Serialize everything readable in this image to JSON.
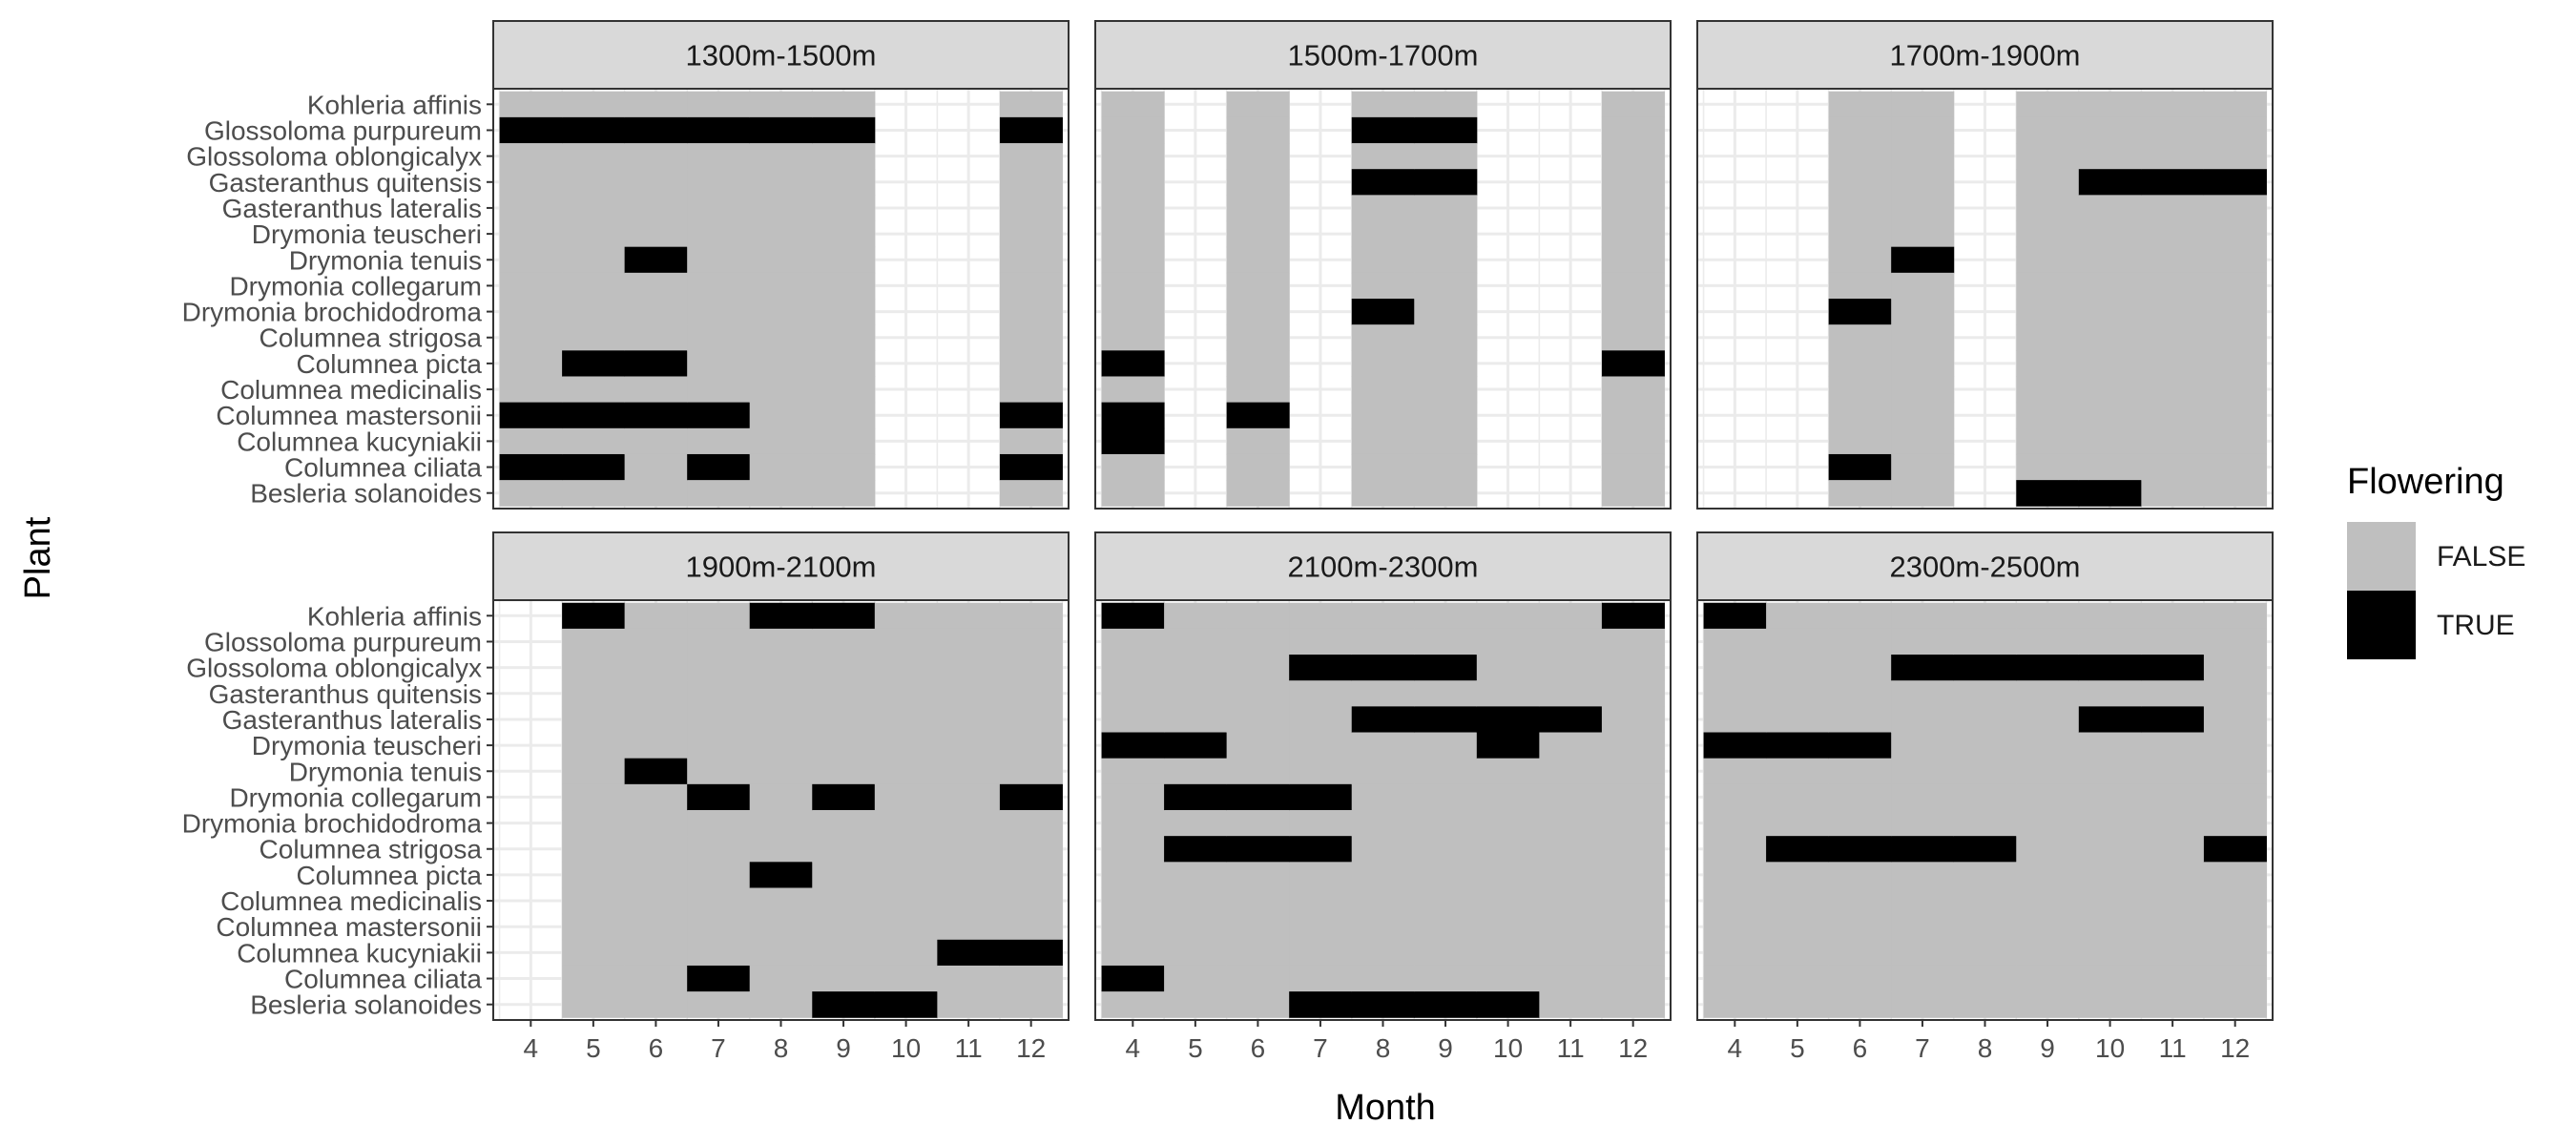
{
  "chart_data": {
    "type": "heatmap",
    "xlabel": "Month",
    "ylabel": "Plant",
    "x_ticks": [
      4,
      5,
      6,
      7,
      8,
      9,
      10,
      11,
      12
    ],
    "plants": [
      "Kohleria affinis",
      "Glossoloma purpureum",
      "Glossoloma oblongicalyx",
      "Gasteranthus quitensis",
      "Gasteranthus lateralis",
      "Drymonia teuscheri",
      "Drymonia tenuis",
      "Drymonia collegarum",
      "Drymonia brochidodroma",
      "Columnea strigosa",
      "Columnea picta",
      "Columnea medicinalis",
      "Columnea mastersonii",
      "Columnea kucyniakii",
      "Columnea ciliata",
      "Besleria solanoides"
    ],
    "legend": {
      "title": "Flowering",
      "entries": [
        {
          "label": "FALSE",
          "color": "#bfbfbf"
        },
        {
          "label": "TRUE",
          "color": "#000000"
        }
      ]
    },
    "panels": [
      {
        "label": "1300m-1500m",
        "sampled_months": [
          4,
          5,
          6,
          7,
          8,
          9,
          12
        ],
        "flowering": {
          "Glossoloma purpureum": [
            4,
            5,
            6,
            7,
            8,
            9,
            12
          ],
          "Drymonia tenuis": [
            6
          ],
          "Columnea picta": [
            5,
            6
          ],
          "Columnea mastersonii": [
            4,
            5,
            6,
            7,
            12
          ],
          "Columnea ciliata": [
            4,
            5,
            7,
            12
          ]
        }
      },
      {
        "label": "1500m-1700m",
        "sampled_months": [
          4,
          6,
          8,
          9,
          12
        ],
        "flowering": {
          "Glossoloma purpureum": [
            8,
            9
          ],
          "Gasteranthus quitensis": [
            8,
            9
          ],
          "Drymonia brochidodroma": [
            8
          ],
          "Columnea picta": [
            4,
            12
          ],
          "Columnea mastersonii": [
            4,
            6
          ],
          "Columnea kucyniakii": [
            4
          ]
        }
      },
      {
        "label": "1700m-1900m",
        "sampled_months": [
          6,
          7,
          9,
          10,
          11,
          12
        ],
        "flowering": {
          "Gasteranthus quitensis": [
            10,
            11,
            12
          ],
          "Drymonia tenuis": [
            7
          ],
          "Drymonia brochidodroma": [
            6
          ],
          "Columnea ciliata": [
            6
          ],
          "Besleria solanoides": [
            9,
            10
          ]
        }
      },
      {
        "label": "1900m-2100m",
        "sampled_months": [
          5,
          6,
          7,
          8,
          9,
          10,
          11,
          12
        ],
        "flowering": {
          "Kohleria affinis": [
            5,
            8,
            9
          ],
          "Drymonia tenuis": [
            6
          ],
          "Drymonia collegarum": [
            7,
            9,
            12
          ],
          "Columnea picta": [
            8
          ],
          "Columnea kucyniakii": [
            11,
            12
          ],
          "Columnea ciliata": [
            7
          ],
          "Besleria solanoides": [
            9,
            10
          ]
        }
      },
      {
        "label": "2100m-2300m",
        "sampled_months": [
          4,
          5,
          6,
          7,
          8,
          9,
          10,
          11,
          12
        ],
        "flowering": {
          "Kohleria affinis": [
            4,
            12
          ],
          "Glossoloma oblongicalyx": [
            7,
            8,
            9
          ],
          "Gasteranthus lateralis": [
            8,
            9,
            10,
            11
          ],
          "Drymonia teuscheri": [
            4,
            5,
            10
          ],
          "Drymonia collegarum": [
            5,
            6,
            7
          ],
          "Columnea strigosa": [
            5,
            6,
            7
          ],
          "Columnea ciliata": [
            4
          ],
          "Besleria solanoides": [
            7,
            8,
            9,
            10
          ]
        }
      },
      {
        "label": "2300m-2500m",
        "sampled_months": [
          4,
          5,
          6,
          7,
          8,
          9,
          10,
          11,
          12
        ],
        "flowering": {
          "Kohleria affinis": [
            4
          ],
          "Glossoloma oblongicalyx": [
            7,
            8,
            9,
            10,
            11
          ],
          "Gasteranthus lateralis": [
            10,
            11
          ],
          "Drymonia teuscheri": [
            4,
            5,
            6
          ],
          "Columnea strigosa": [
            5,
            6,
            7,
            8,
            12
          ]
        }
      }
    ]
  }
}
